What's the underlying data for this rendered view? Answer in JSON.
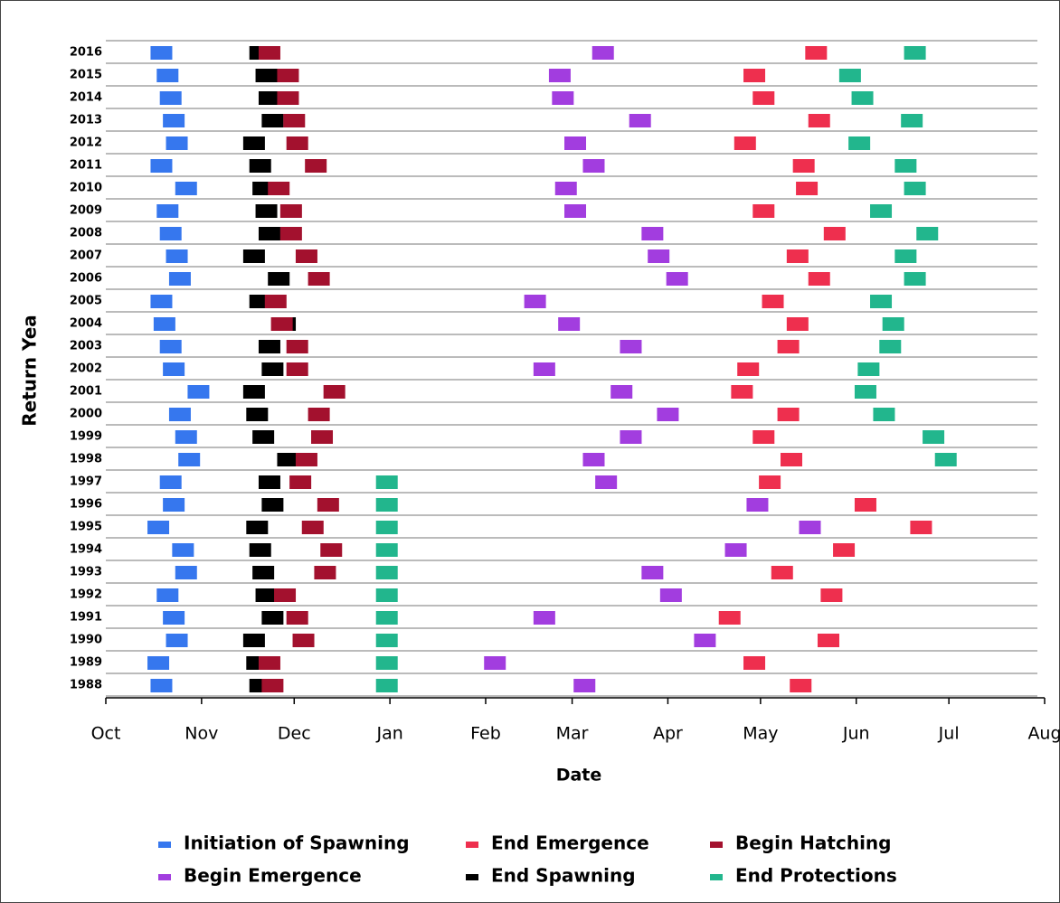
{
  "chart_data": {
    "type": "timeline",
    "x_label": "Date",
    "y_label": "Return Yea",
    "categories": [
      "2016",
      "2015",
      "2014",
      "2013",
      "2012",
      "2011",
      "2010",
      "2009",
      "2008",
      "2007",
      "2006",
      "2005",
      "2004",
      "2003",
      "2002",
      "2001",
      "2000",
      "1999",
      "1998",
      "1997",
      "1996",
      "1995",
      "1994",
      "1993",
      "1992",
      "1991",
      "1990",
      "1989",
      "1988"
    ],
    "xlim": [
      0,
      304
    ],
    "xticks": [
      {
        "value": 0,
        "label": "Oct"
      },
      {
        "value": 31,
        "label": "Nov"
      },
      {
        "value": 61,
        "label": "Dec"
      },
      {
        "value": 92,
        "label": "Jan"
      },
      {
        "value": 123,
        "label": "Feb"
      },
      {
        "value": 151,
        "label": "Mar"
      },
      {
        "value": 182,
        "label": "Apr"
      },
      {
        "value": 212,
        "label": "May"
      },
      {
        "value": 243,
        "label": "Jun"
      },
      {
        "value": 273,
        "label": "Jul"
      },
      {
        "value": 304,
        "label": "Aug"
      }
    ],
    "series": [
      {
        "name": "Initiation of Spawning",
        "color": "#3677ee",
        "values": [
          18,
          20,
          21,
          22,
          23,
          18,
          26,
          20,
          21,
          23,
          24,
          18,
          19,
          21,
          22,
          30,
          24,
          26,
          27,
          21,
          22,
          17,
          25,
          26,
          20,
          22,
          23,
          17,
          18
        ]
      },
      {
        "name": "End Spawning",
        "color": "#000000",
        "values": [
          50,
          52,
          53,
          54,
          48,
          50,
          51,
          52,
          53,
          48,
          56,
          50,
          58,
          53,
          54,
          48,
          49,
          51,
          59,
          53,
          54,
          49,
          50,
          51,
          52,
          54,
          48,
          49,
          50
        ]
      },
      {
        "name": "Begin Hatching",
        "color": "#a3112e",
        "values": [
          53,
          59,
          59,
          61,
          62,
          68,
          56,
          60,
          60,
          65,
          69,
          55,
          57,
          62,
          62,
          74,
          69,
          70,
          65,
          63,
          72,
          67,
          73,
          71,
          58,
          62,
          64,
          53,
          54
        ]
      },
      {
        "name": "Begin Emergence",
        "color": "#a23ddf",
        "values": [
          161,
          147,
          148,
          173,
          152,
          158,
          149,
          152,
          177,
          179,
          185,
          139,
          150,
          170,
          142,
          167,
          182,
          170,
          158,
          162,
          211,
          228,
          204,
          177,
          183,
          142,
          194,
          126,
          155
        ]
      },
      {
        "name": "End Emergence",
        "color": "#ee2f4e",
        "values": [
          230,
          210,
          213,
          231,
          207,
          226,
          227,
          213,
          236,
          224,
          231,
          216,
          224,
          221,
          208,
          206,
          221,
          213,
          222,
          215,
          246,
          264,
          239,
          219,
          235,
          202,
          234,
          210,
          225
        ]
      },
      {
        "name": "End Protections",
        "color": "#22b68d",
        "values": [
          262,
          241,
          245,
          261,
          244,
          259,
          262,
          251,
          266,
          259,
          262,
          251,
          255,
          254,
          247,
          246,
          252,
          268,
          272,
          91,
          91,
          91,
          91,
          91,
          91,
          91,
          91,
          91,
          91
        ]
      }
    ]
  }
}
